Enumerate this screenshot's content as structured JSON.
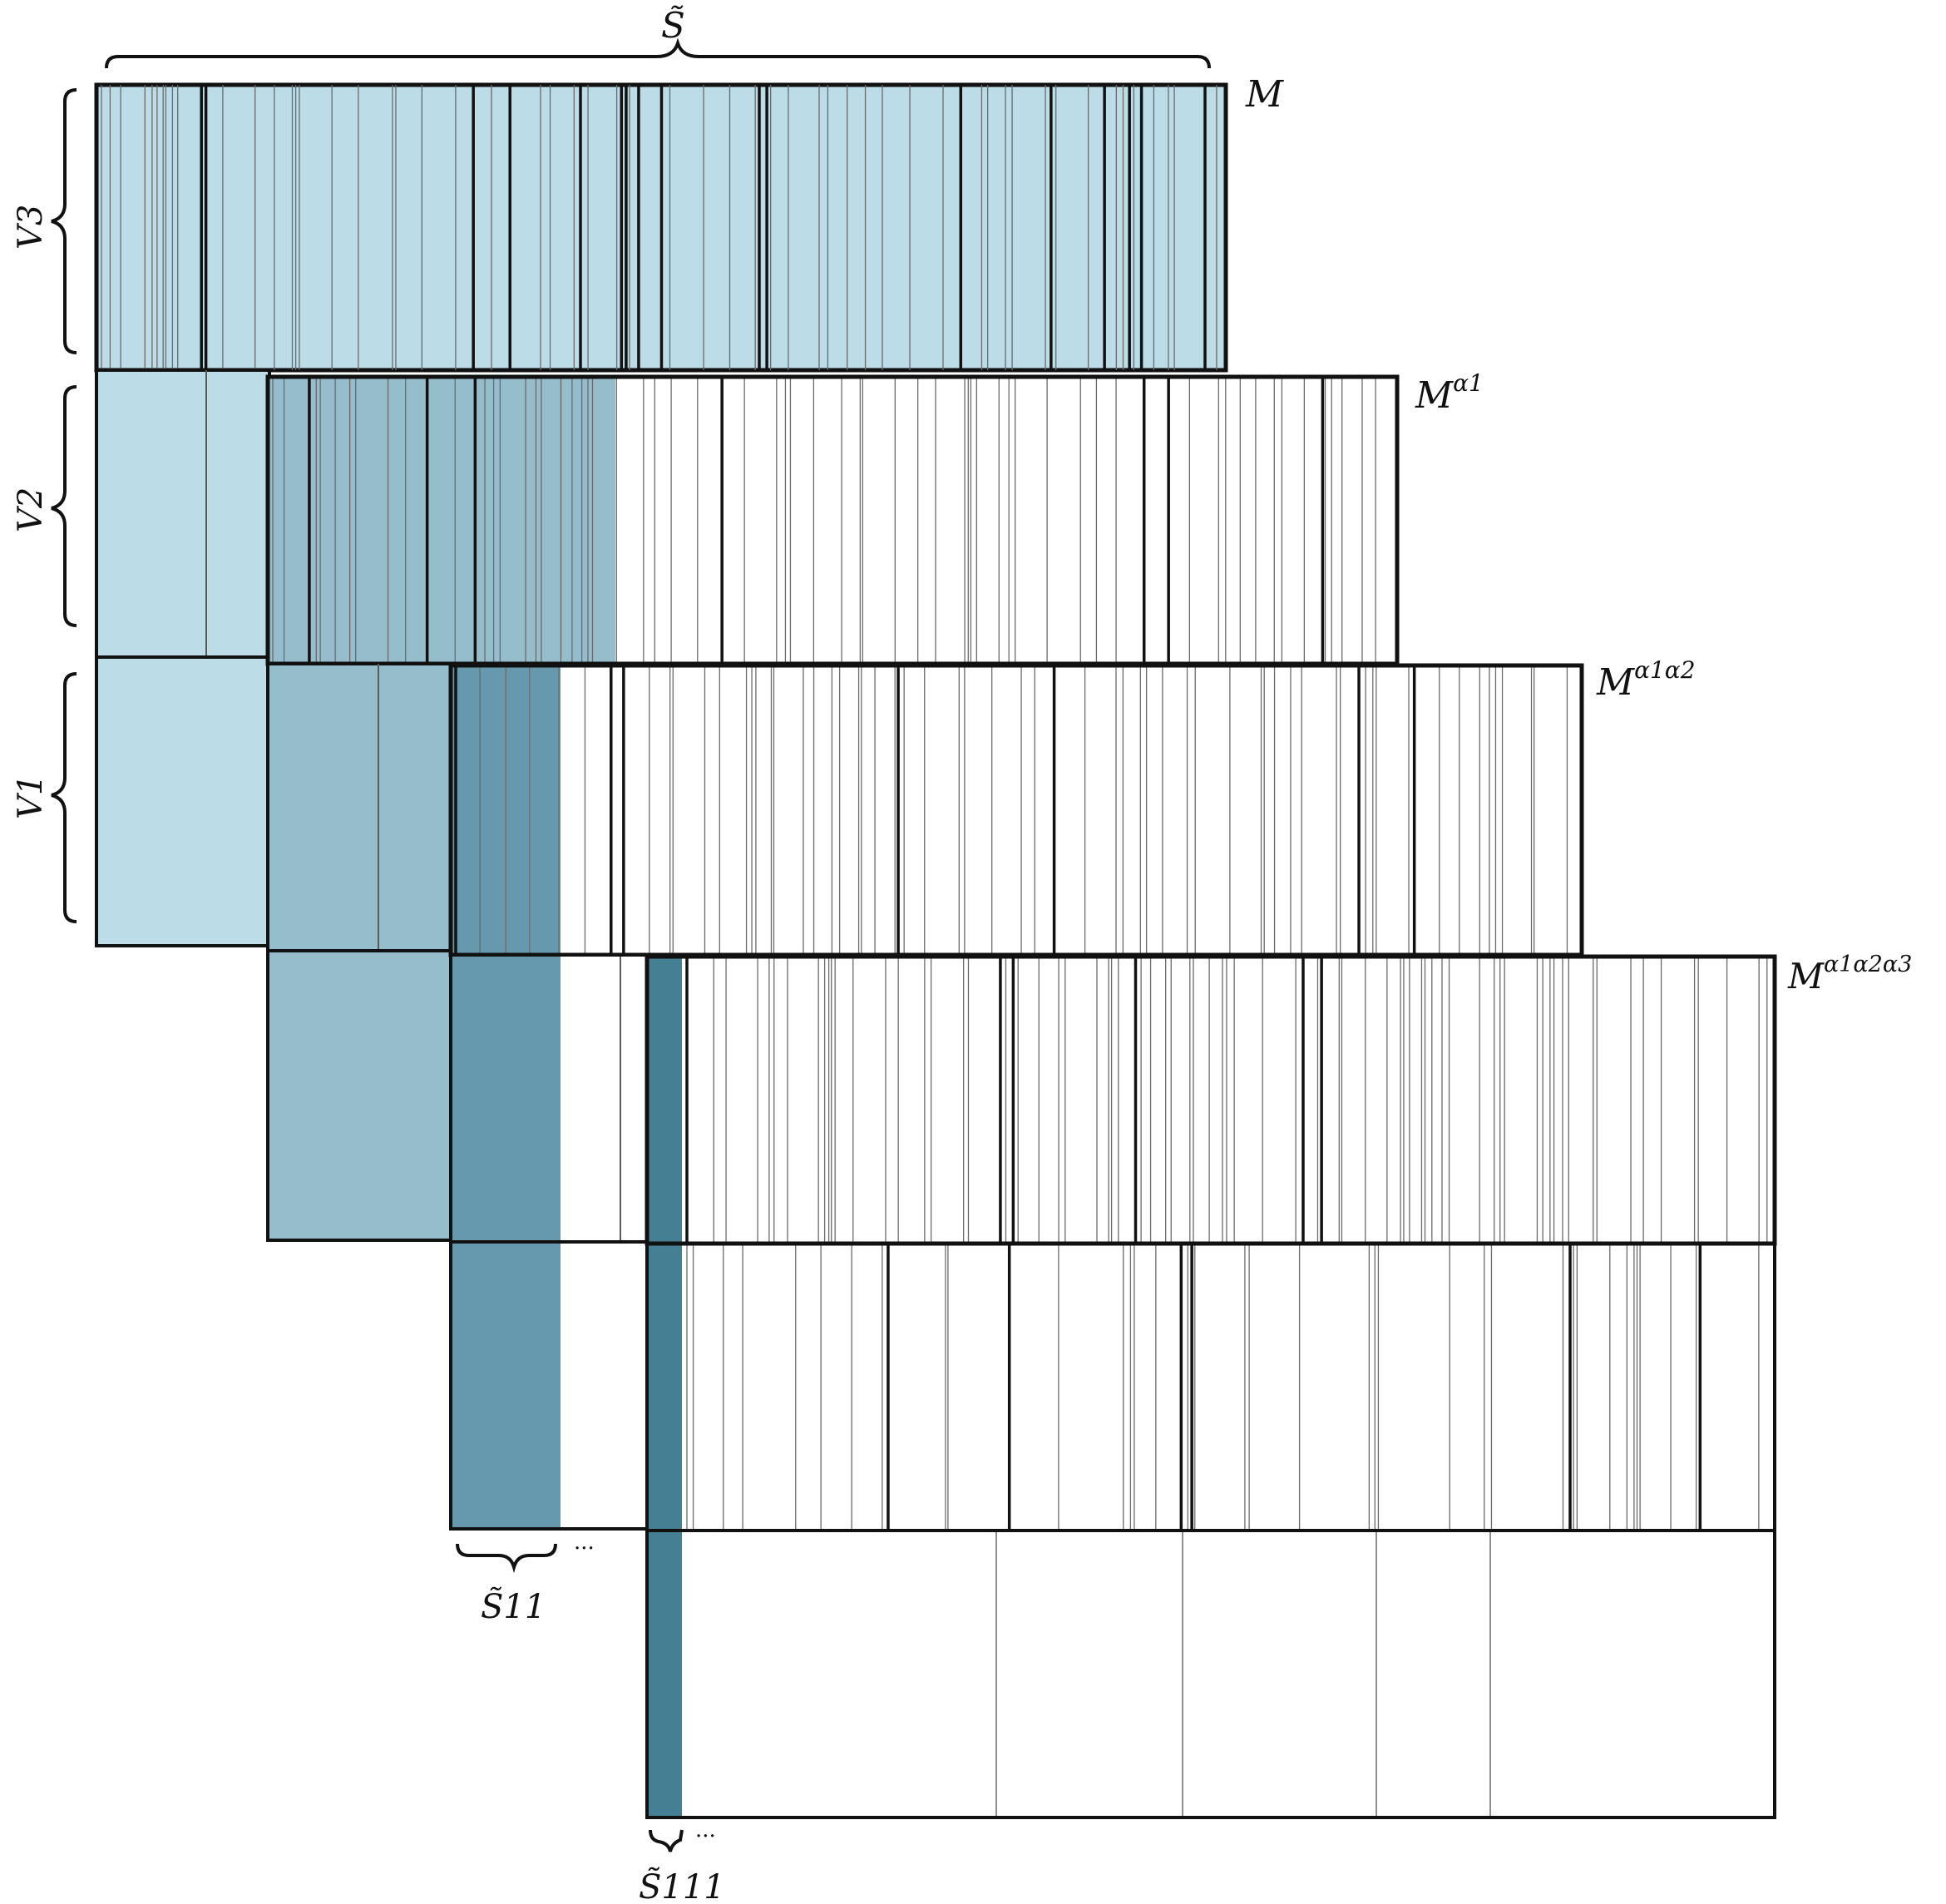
{
  "labels": {
    "s_tilde": "S̃",
    "v3": "V3",
    "v2": "V2",
    "v1": "V1",
    "s11": "S̃11",
    "s111": "S̃111",
    "ellipsis": "···",
    "matrices": [
      {
        "base": "M",
        "sup": ""
      },
      {
        "base": "M",
        "sup": "α1"
      },
      {
        "base": "M",
        "sup": "α1α2"
      },
      {
        "base": "M",
        "sup": "α1α2α3"
      }
    ]
  },
  "colors": {
    "level0": "#bcdce8",
    "level1": "#96bdcc",
    "level2": "#6699ad",
    "level3": "#457f93",
    "outline": "#111111",
    "thin_line": "#5a5a5a"
  }
}
